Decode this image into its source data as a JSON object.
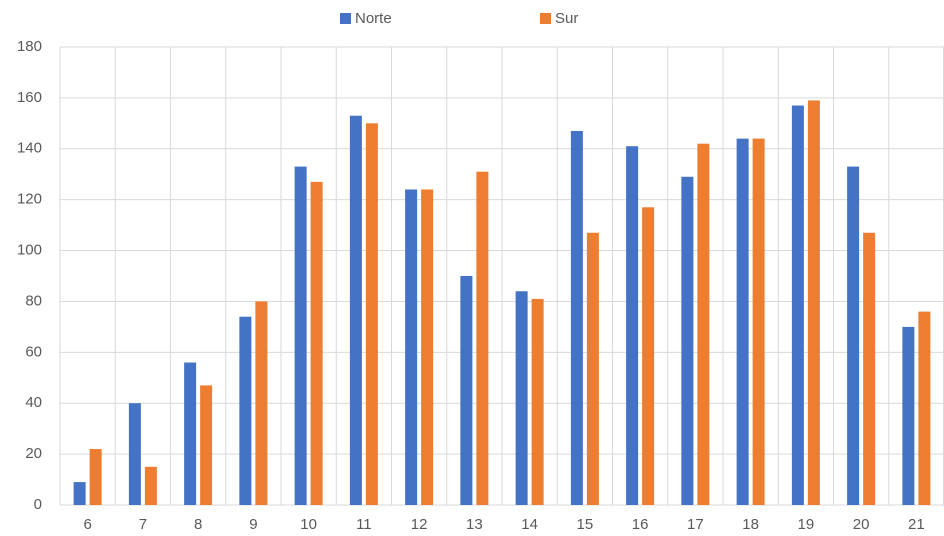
{
  "chart_data": {
    "type": "bar",
    "categories": [
      "6",
      "7",
      "8",
      "9",
      "10",
      "11",
      "12",
      "13",
      "14",
      "15",
      "16",
      "17",
      "18",
      "19",
      "20",
      "21"
    ],
    "series": [
      {
        "name": "Norte",
        "color": "#4472c4",
        "values": [
          9,
          40,
          56,
          74,
          133,
          153,
          124,
          90,
          84,
          147,
          141,
          129,
          144,
          157,
          133,
          70
        ]
      },
      {
        "name": "Sur",
        "color": "#ed7d31",
        "values": [
          22,
          15,
          47,
          80,
          127,
          150,
          124,
          131,
          81,
          107,
          117,
          142,
          144,
          159,
          107,
          76
        ]
      }
    ],
    "ylim": [
      0,
      180
    ],
    "yticks": [
      0,
      20,
      40,
      60,
      80,
      100,
      120,
      140,
      160,
      180
    ],
    "grid": true,
    "legend": "top"
  }
}
